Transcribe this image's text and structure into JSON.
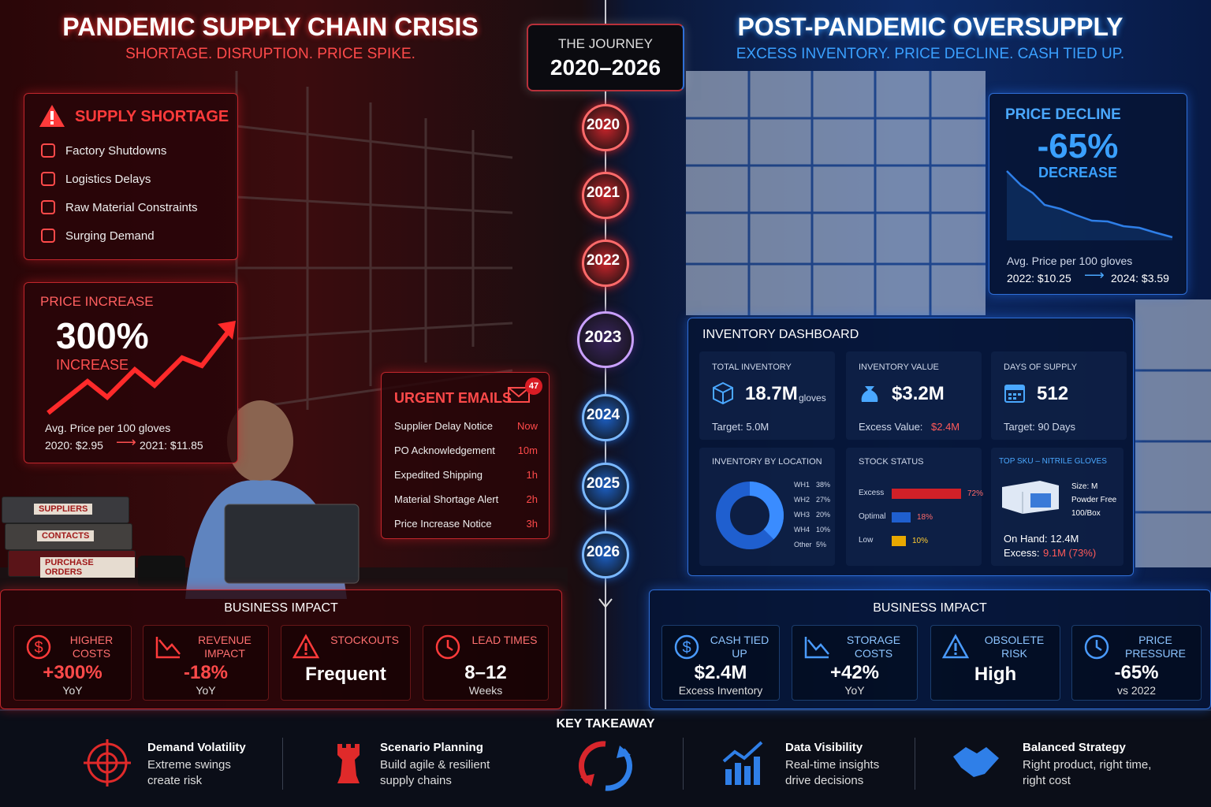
{
  "crisis": {
    "title": "PANDEMIC SUPPLY CHAIN CRISIS",
    "subtitle": "SHORTAGE. DISRUPTION. PRICE SPIKE.",
    "shortage": {
      "title": "SUPPLY SHORTAGE",
      "items": [
        "Factory Shutdowns",
        "Logistics Delays",
        "Raw Material Constraints",
        "Surging Demand"
      ]
    },
    "price_increase": {
      "label": "PRICE INCREASE",
      "value": "300%",
      "caption": "INCREASE",
      "note": "Avg. Price per 100 gloves",
      "from": "2020: $2.95",
      "to": "2021: $11.85"
    },
    "urgent_emails": {
      "title": "URGENT EMAILS",
      "badge": "47",
      "rows": [
        [
          "Supplier Delay Notice",
          "Now"
        ],
        [
          "PO Acknowledgement",
          "10m"
        ],
        [
          "Expedited Shipping",
          "1h"
        ],
        [
          "Material Shortage Alert",
          "2h"
        ],
        [
          "Price Increase Notice",
          "3h"
        ]
      ]
    },
    "binders": [
      "SUPPLIERS",
      "CONTACTS",
      "PURCHASE ORDERS"
    ],
    "impact": {
      "title": "BUSINESS IMPACT",
      "cards": [
        {
          "label": "HIGHER COSTS",
          "value": "+300%",
          "sub": "YoY"
        },
        {
          "label": "REVENUE IMPACT",
          "value": "-18%",
          "sub": "YoY"
        },
        {
          "label": "STOCKOUTS",
          "value": "Frequent"
        },
        {
          "label": "LEAD TIMES",
          "value": "8–12",
          "sub": "Weeks"
        }
      ]
    }
  },
  "journey": {
    "label": "THE JOURNEY",
    "range": "2020–2026",
    "years": [
      "2020",
      "2021",
      "2022",
      "2023",
      "2024",
      "2025",
      "2026"
    ]
  },
  "oversupply": {
    "title": "POST-PANDEMIC OVERSUPPLY",
    "subtitle": "EXCESS INVENTORY. PRICE DECLINE. CASH TIED UP.",
    "price_decline": {
      "label": "PRICE DECLINE",
      "value": "-65%",
      "caption": "DECREASE",
      "note": "Avg. Price per 100 gloves",
      "from": "2022: $10.25",
      "to": "2024: $3.59"
    },
    "dashboard": {
      "title": "INVENTORY DASHBOARD",
      "kpis": [
        {
          "label": "TOTAL INVENTORY",
          "value": "18.7M",
          "unit": "gloves",
          "note": "Target: 5.0M"
        },
        {
          "label": "INVENTORY VALUE",
          "value": "$3.2M",
          "note": "Excess Value:",
          "note_value": "$2.4M"
        },
        {
          "label": "DAYS OF SUPPLY",
          "value": "512",
          "note": "Target: 90 Days"
        }
      ],
      "location": {
        "title": "INVENTORY BY LOCATION",
        "rows": [
          [
            "WH1",
            "38%"
          ],
          [
            "WH2",
            "27%"
          ],
          [
            "WH3",
            "20%"
          ],
          [
            "WH4",
            "10%"
          ],
          [
            "Other",
            "5%"
          ]
        ]
      },
      "stock": {
        "title": "STOCK STATUS",
        "rows": [
          [
            "Excess",
            "72%"
          ],
          [
            "Optimal",
            "18%"
          ],
          [
            "Low",
            "10%"
          ]
        ]
      },
      "sku": {
        "title": "TOP SKU – NITRILE GLOVES",
        "specs": [
          "Size: M",
          "Powder Free",
          "100/Box"
        ],
        "on_hand": "On Hand: 12.4M",
        "excess": "Excess:",
        "excess_value": "9.1M (73%)"
      }
    },
    "impact": {
      "title": "BUSINESS IMPACT",
      "cards": [
        {
          "label": "CASH TIED UP",
          "value": "$2.4M",
          "sub": "Excess Inventory"
        },
        {
          "label": "STORAGE COSTS",
          "value": "+42%",
          "sub": "YoY"
        },
        {
          "label": "OBSOLETE RISK",
          "value": "High"
        },
        {
          "label": "PRICE PRESSURE",
          "value": "-65%",
          "sub": "vs 2022"
        }
      ]
    }
  },
  "takeaway": {
    "title": "KEY TAKEAWAY",
    "items": [
      {
        "title": "Demand Volatility",
        "text": "Extreme swings create risk"
      },
      {
        "title": "Scenario Planning",
        "text": "Build agile & resilient supply chains"
      },
      {
        "title": "Data Visibility",
        "text": "Real-time insights drive decisions"
      },
      {
        "title": "Balanced Strategy",
        "text": "Right product, right time, right cost"
      }
    ]
  }
}
